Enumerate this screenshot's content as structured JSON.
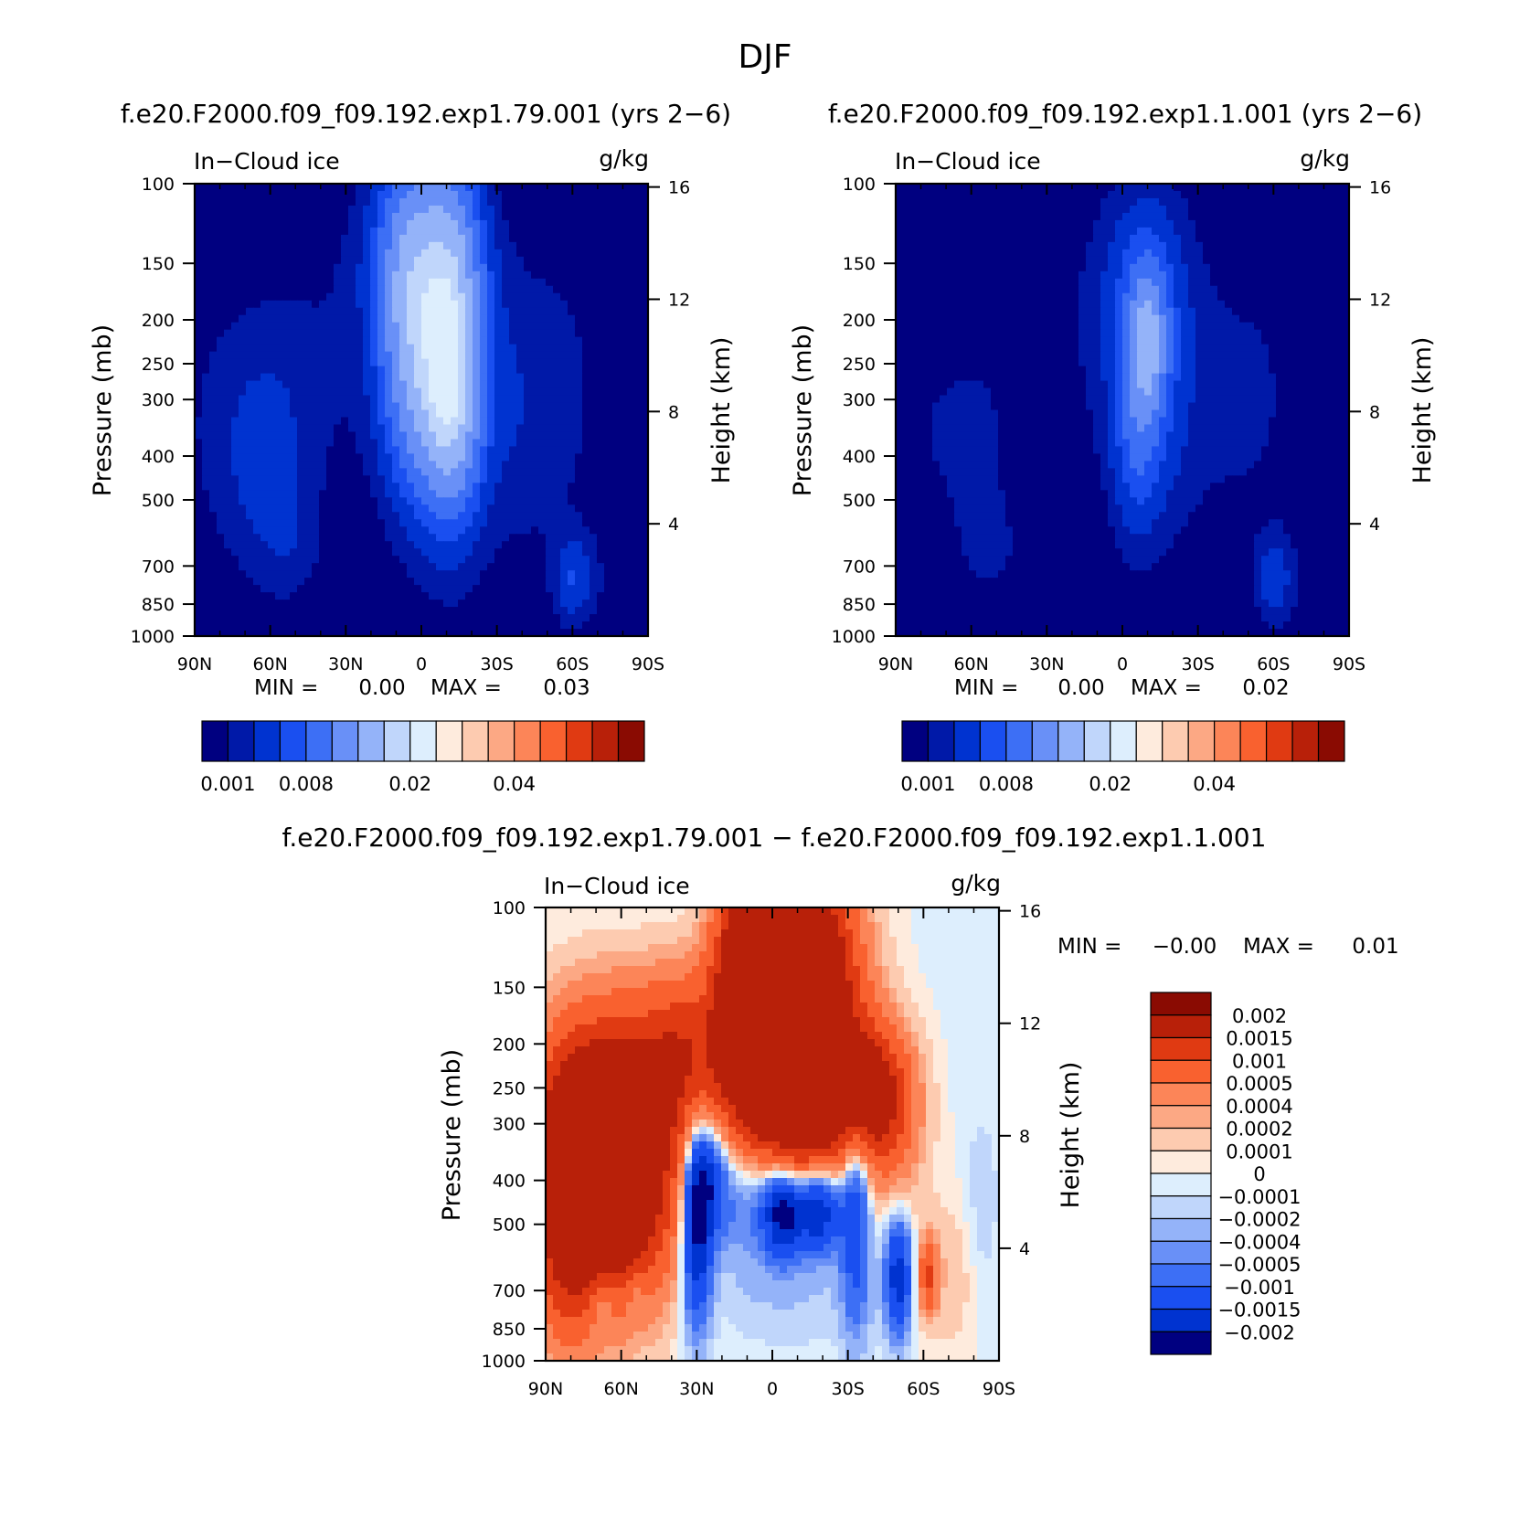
{
  "figure": {
    "title": "DJF"
  },
  "chart_data": [
    {
      "id": "top-left",
      "type": "heatmap",
      "title": "f.e20.F2000.f09_f09.192.exp1.79.001 (yrs 2−6)",
      "subtitle_left": "In−Cloud ice",
      "subtitle_right": "g/kg",
      "xlabel": "",
      "ylabel": "Pressure (mb)",
      "ylabel_right": "Height (km)",
      "x_ticks": [
        "90N",
        "60N",
        "30N",
        "0",
        "30S",
        "60S",
        "90S"
      ],
      "y_ticks": [
        "100",
        "150",
        "200",
        "250",
        "300",
        "400",
        "500",
        "700",
        "850",
        "1000"
      ],
      "y_right_ticks": [
        "16",
        "12",
        "8",
        "4"
      ],
      "min_label": "MIN =",
      "min_value": "0.00",
      "max_label": "MAX =",
      "max_value": "0.03",
      "colorbar_labels": [
        "0.001",
        "0.008",
        "0.02",
        "0.04"
      ],
      "colors": [
        "#000080",
        "#0019a8",
        "#0033d0",
        "#1a4ff0",
        "#3d6ff5",
        "#6990f7",
        "#94b3f9",
        "#c0d6fb",
        "#ddeefd",
        "#feebdd",
        "#fdcbb0",
        "#fca884",
        "#fc8558",
        "#f9612f",
        "#e03a12",
        "#b82009",
        "#8a0b02"
      ],
      "fields": [
        {
          "x": -86,
          "y": 8,
          "sx": 16,
          "sy": 4,
          "w": 0.0011
        },
        {
          "x": -60,
          "y": 7,
          "sx": 16,
          "sy": 3.5,
          "w": 0.0022
        },
        {
          "x": -64,
          "y": 5.8,
          "sx": 12,
          "sy": 2.6,
          "w": 0.0015
        },
        {
          "x": -52,
          "y": 3,
          "sx": 9,
          "sy": 1.4,
          "w": 0.0016
        },
        {
          "x": -25,
          "y": 10.5,
          "sx": 28,
          "sy": 4,
          "w": 0.0015
        },
        {
          "x": 0,
          "y": 14,
          "sx": 16,
          "sy": 2.2,
          "w": 0.004
        },
        {
          "x": -5,
          "y": 11,
          "sx": 9,
          "sy": 4,
          "w": 0.012
        },
        {
          "x": 12,
          "y": 10.5,
          "sx": 9,
          "sy": 4.2,
          "w": 0.016
        },
        {
          "x": 10,
          "y": 8,
          "sx": 8,
          "sy": 2.2,
          "w": 0.005
        },
        {
          "x": 35,
          "y": 8,
          "sx": 18,
          "sy": 4,
          "w": 0.0026
        },
        {
          "x": 58,
          "y": 9,
          "sx": 16,
          "sy": 4,
          "w": 0.0012
        },
        {
          "x": 60,
          "y": 2,
          "sx": 5,
          "sy": 1.1,
          "w": 0.004
        },
        {
          "x": 70,
          "y": 2,
          "sx": 12,
          "sy": 1.5,
          "w": 0.0012
        }
      ]
    },
    {
      "id": "top-right",
      "type": "heatmap",
      "title": "f.e20.F2000.f09_f09.192.exp1.1.001 (yrs 2−6)",
      "subtitle_left": "In−Cloud ice",
      "subtitle_right": "g/kg",
      "xlabel": "",
      "ylabel": "Pressure (mb)",
      "ylabel_right": "Height (km)",
      "x_ticks": [
        "90N",
        "60N",
        "30N",
        "0",
        "30S",
        "60S",
        "90S"
      ],
      "y_ticks": [
        "100",
        "150",
        "200",
        "250",
        "300",
        "400",
        "500",
        "700",
        "850",
        "1000"
      ],
      "y_right_ticks": [
        "16",
        "12",
        "8",
        "4"
      ],
      "min_label": "MIN =",
      "min_value": "0.00",
      "max_label": "MAX =",
      "max_value": "0.02",
      "colorbar_labels": [
        "0.001",
        "0.008",
        "0.02",
        "0.04"
      ],
      "colors": [
        "#000080",
        "#0019a8",
        "#0033d0",
        "#1a4ff0",
        "#3d6ff5",
        "#6990f7",
        "#94b3f9",
        "#c0d6fb",
        "#ddeefd",
        "#feebdd",
        "#fdcbb0",
        "#fca884",
        "#fc8558",
        "#f9612f",
        "#e03a12",
        "#b82009",
        "#8a0b02"
      ],
      "fields": [
        {
          "x": -86,
          "y": 8,
          "sx": 16,
          "sy": 4,
          "w": 0.0011
        },
        {
          "x": -60,
          "y": 6.5,
          "sx": 14,
          "sy": 3.2,
          "w": 0.0014
        },
        {
          "x": -52,
          "y": 3,
          "sx": 9,
          "sy": 1.4,
          "w": 0.0015
        },
        {
          "x": -25,
          "y": 10,
          "sx": 26,
          "sy": 4,
          "w": 0.0012
        },
        {
          "x": 8,
          "y": 13,
          "sx": 14,
          "sy": 2.6,
          "w": 0.003
        },
        {
          "x": 10,
          "y": 9,
          "sx": 11,
          "sy": 3.8,
          "w": 0.005
        },
        {
          "x": 10,
          "y": 10.5,
          "sx": 5,
          "sy": 1.7,
          "w": 0.009
        },
        {
          "x": 5,
          "y": 7,
          "sx": 6,
          "sy": 2.4,
          "w": 0.0035
        },
        {
          "x": 35,
          "y": 8,
          "sx": 18,
          "sy": 4,
          "w": 0.0015
        },
        {
          "x": 58,
          "y": 9,
          "sx": 16,
          "sy": 4,
          "w": 0.0012
        },
        {
          "x": 60,
          "y": 2,
          "sx": 5,
          "sy": 1.1,
          "w": 0.0035
        },
        {
          "x": 70,
          "y": 2,
          "sx": 12,
          "sy": 1.5,
          "w": 0.0011
        }
      ]
    },
    {
      "id": "bottom",
      "type": "heatmap",
      "title": "f.e20.F2000.f09_f09.192.exp1.79.001 − f.e20.F2000.f09_f09.192.exp1.1.001",
      "subtitle_left": "In−Cloud ice",
      "subtitle_right": "g/kg",
      "xlabel": "",
      "ylabel": "Pressure (mb)",
      "ylabel_right": "Height (km)",
      "x_ticks": [
        "90N",
        "60N",
        "30N",
        "0",
        "30S",
        "60S",
        "90S"
      ],
      "y_ticks": [
        "100",
        "150",
        "200",
        "250",
        "300",
        "400",
        "500",
        "700",
        "850",
        "1000"
      ],
      "y_right_ticks": [
        "16",
        "12",
        "8",
        "4"
      ],
      "min_label": "MIN =",
      "min_value": "−0.00",
      "max_label": "MAX =",
      "max_value": "0.01",
      "colorbar_labels": [
        "0.002",
        "0.0015",
        "0.001",
        "0.0005",
        "0.0004",
        "0.0002",
        "0.0001",
        "0",
        "−0.0001",
        "−0.0002",
        "−0.0004",
        "−0.0005",
        "−0.001",
        "−0.0015",
        "−0.002"
      ],
      "colors": [
        "#8a0b02",
        "#b82009",
        "#e03a12",
        "#f9612f",
        "#fc8558",
        "#fca884",
        "#fdcbb0",
        "#feebdd",
        "#ddeefd",
        "#c0d6fb",
        "#94b3f9",
        "#6990f7",
        "#3d6ff5",
        "#1a4ff0",
        "#0033d0",
        "#000080"
      ],
      "fields": [
        {
          "x": 12,
          "y": 13,
          "sx": 14,
          "sy": 3,
          "w": 0.004
        },
        {
          "x": -10,
          "y": 13,
          "sx": 9,
          "sy": 3,
          "w": 0.003
        },
        {
          "x": 10,
          "y": 9,
          "sx": 14,
          "sy": 2,
          "w": 0.002
        },
        {
          "x": -68,
          "y": 6.8,
          "sx": 18,
          "sy": 3,
          "w": 0.004
        },
        {
          "x": -60,
          "y": 10,
          "sx": 22,
          "sy": 2.5,
          "w": 0.0006
        },
        {
          "x": -35,
          "y": 11,
          "sx": 12,
          "sy": 2,
          "w": 0.0012
        },
        {
          "x": -82,
          "y": 4,
          "sx": 8,
          "sy": 3,
          "w": 0.0008
        },
        {
          "x": 38,
          "y": 9.5,
          "sx": 10,
          "sy": 1.6,
          "w": 0.002
        },
        {
          "x": 48,
          "y": 8.5,
          "sx": 9,
          "sy": 2.2,
          "w": 0.0006
        },
        {
          "x": 70,
          "y": 3,
          "sx": 10,
          "sy": 2,
          "w": 0.00025
        },
        {
          "x": 62,
          "y": 3,
          "sx": 2.5,
          "sy": 0.9,
          "w": 0.0012
        },
        {
          "x": -45,
          "y": 5.5,
          "sx": 16,
          "sy": 3,
          "w": 0.00012
        },
        {
          "x": 5,
          "y": 2.5,
          "sx": 25,
          "sy": 1.5,
          "w": -0.00016
        },
        {
          "x": -5,
          "y": 6,
          "sx": 16,
          "sy": 1.6,
          "w": -0.0008
        },
        {
          "x": 4,
          "y": 5.3,
          "sx": 5,
          "sy": 1,
          "w": -0.0018
        },
        {
          "x": 18,
          "y": 5.4,
          "sx": 6,
          "sy": 1,
          "w": -0.0018
        },
        {
          "x": -30,
          "y": 4.8,
          "sx": 4,
          "sy": 2.3,
          "w": -0.002
        },
        {
          "x": -25,
          "y": 6.5,
          "sx": 5,
          "sy": 1.4,
          "w": -0.0012
        },
        {
          "x": 33,
          "y": 5.5,
          "sx": 4,
          "sy": 2.8,
          "w": -0.0012
        },
        {
          "x": 50,
          "y": 3,
          "sx": 3.5,
          "sy": 1.4,
          "w": -0.0016
        },
        {
          "x": -68,
          "y": 2.2,
          "sx": 4,
          "sy": 0.8,
          "w": -0.0006
        },
        {
          "x": -55,
          "y": 2.5,
          "sx": 3,
          "sy": 0.7,
          "w": -0.0004
        },
        {
          "x": 83,
          "y": 5,
          "sx": 5,
          "sy": 2.5,
          "w": -0.00018
        }
      ]
    }
  ]
}
